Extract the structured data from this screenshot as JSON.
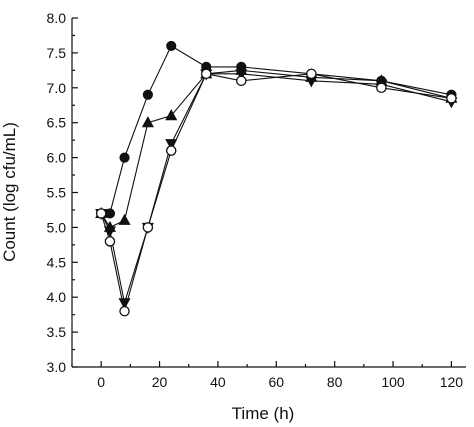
{
  "chart_data": {
    "type": "line",
    "title": "",
    "xlabel": "Time (h)",
    "ylabel": "Count (log cfu/mL)",
    "xlim": [
      -10,
      125
    ],
    "ylim": [
      3.0,
      8.0
    ],
    "x_ticks": [
      0,
      20,
      40,
      60,
      80,
      100,
      120
    ],
    "x_tick_labels": [
      "0",
      "20",
      "40",
      "60",
      "80",
      "100",
      "120"
    ],
    "y_ticks": [
      3.0,
      3.5,
      4.0,
      4.5,
      5.0,
      5.5,
      6.0,
      6.5,
      7.0,
      7.5,
      8.0
    ],
    "y_tick_labels": [
      "3.0",
      "3.5",
      "4.0",
      "4.5",
      "5.0",
      "5.5",
      "6.0",
      "6.5",
      "7.0",
      "7.5",
      "8.0"
    ],
    "grid": false,
    "legend": "none",
    "series": [
      {
        "marker": "filled-circle",
        "x": [
          0,
          3,
          8,
          16,
          24,
          36,
          48,
          72,
          96,
          120
        ],
        "y": [
          5.2,
          5.2,
          6.0,
          6.9,
          7.6,
          7.3,
          7.3,
          7.2,
          7.1,
          6.9
        ]
      },
      {
        "marker": "filled-triangle-up",
        "x": [
          0,
          3,
          8,
          16,
          24,
          36,
          48,
          72,
          96,
          120
        ],
        "y": [
          5.2,
          5.0,
          5.1,
          6.5,
          6.6,
          7.2,
          7.25,
          7.15,
          7.1,
          6.85
        ]
      },
      {
        "marker": "filled-triangle-down",
        "x": [
          0,
          3,
          8,
          16,
          24,
          36,
          48,
          72,
          96,
          120
        ],
        "y": [
          5.2,
          4.95,
          3.92,
          5.0,
          6.2,
          7.2,
          7.2,
          7.1,
          7.05,
          6.8
        ]
      },
      {
        "marker": "open-circle",
        "x": [
          0,
          3,
          8,
          16,
          24,
          36,
          48,
          72,
          96,
          120
        ],
        "y": [
          5.2,
          4.8,
          3.8,
          5.0,
          6.1,
          7.2,
          7.1,
          7.2,
          7.0,
          6.85
        ]
      }
    ]
  }
}
